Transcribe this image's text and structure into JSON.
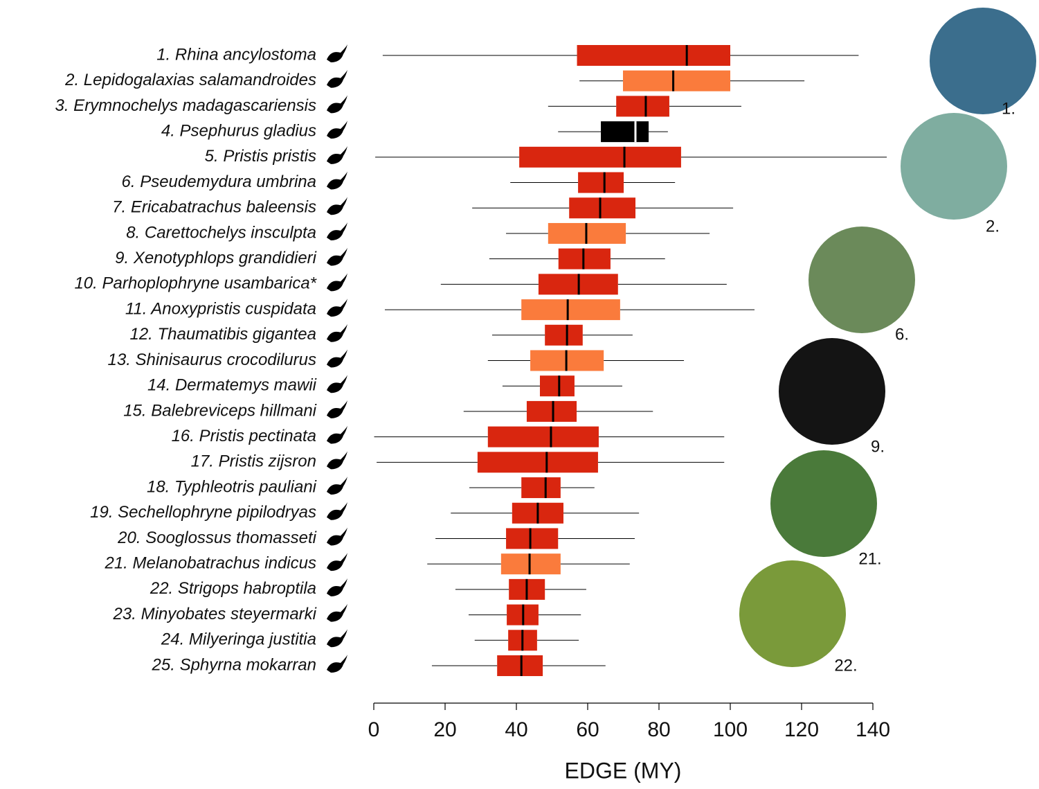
{
  "chart_data": {
    "type": "boxplot",
    "categories": [
      "1. Rhina ancylostoma",
      "2. Lepidogalaxias salamandroides",
      "3. Erymnochelys madagascariensis",
      "4. Psephurus gladius",
      "5. Pristis pristis",
      "6. Pseudemydura umbrina",
      "7. Ericabatrachus baleensis",
      "8. Carettochelys insculpta",
      "9. Xenotyphlops grandidieri",
      "10. Parhoplophryne usambarica*",
      "11. Anoxypristis cuspidata",
      "12. Thaumatibis gigantea",
      "13. Shinisaurus crocodilurus",
      "14. Dermatemys mawii",
      "15. Balebreviceps hillmani",
      "16. Pristis pectinata",
      "17. Pristis zijsron",
      "18. Typhleotris pauliani",
      "19. Sechellophryne pipilodryas",
      "20. Sooglossus thomasseti",
      "21. Melanobatrachus indicus",
      "22. Strigops habroptila",
      "23. Minyobates steyermarki",
      "24. Milyeringa justitia",
      "25. Sphyrna mokarran"
    ],
    "boxes": [
      {
        "low": 2.5,
        "q1": 57,
        "median": 87.8,
        "q3": 100,
        "high": 136,
        "color": "#d9260f",
        "median_color": "#000000"
      },
      {
        "low": 57.7,
        "q1": 69.9,
        "median": 84,
        "q3": 100,
        "high": 120.8,
        "color": "#fa7b3c",
        "median_color": "#000000"
      },
      {
        "low": 48.9,
        "q1": 68,
        "median": 76.3,
        "q3": 82.9,
        "high": 103.1,
        "color": "#d9260f",
        "median_color": "#000000"
      },
      {
        "low": 51.7,
        "q1": 63.7,
        "median": 73.4,
        "q3": 77.1,
        "high": 82.5,
        "color": "#000000",
        "median_color": "#ffffff"
      },
      {
        "low": 0.4,
        "q1": 40.8,
        "median": 70.3,
        "q3": 86.2,
        "high": 143.9,
        "color": "#d9260f",
        "median_color": "#000000"
      },
      {
        "low": 38.3,
        "q1": 57.3,
        "median": 64.7,
        "q3": 70.1,
        "high": 84.5,
        "color": "#d9260f",
        "median_color": "#000000"
      },
      {
        "low": 27.6,
        "q1": 54.8,
        "median": 63.5,
        "q3": 73.4,
        "high": 100.8,
        "color": "#d9260f",
        "median_color": "#000000"
      },
      {
        "low": 37.1,
        "q1": 48.9,
        "median": 59.6,
        "q3": 70.7,
        "high": 94.2,
        "color": "#fa7b3c",
        "median_color": "#000000"
      },
      {
        "low": 32.4,
        "q1": 51.8,
        "median": 58.8,
        "q3": 66.4,
        "high": 81.7,
        "color": "#d9260f",
        "median_color": "#000000"
      },
      {
        "low": 18.8,
        "q1": 46.2,
        "median": 57.5,
        "q3": 68.5,
        "high": 99,
        "color": "#d9260f",
        "median_color": "#000000"
      },
      {
        "low": 3.1,
        "q1": 41.4,
        "median": 54.4,
        "q3": 69.1,
        "high": 106.8,
        "color": "#fa7b3c",
        "median_color": "#000000"
      },
      {
        "low": 33.2,
        "q1": 48,
        "median": 54.2,
        "q3": 58.6,
        "high": 72.6,
        "color": "#d9260f",
        "median_color": "#000000"
      },
      {
        "low": 32,
        "q1": 43.9,
        "median": 54,
        "q3": 64.5,
        "high": 87,
        "color": "#fa7b3c",
        "median_color": "#000000"
      },
      {
        "low": 36.1,
        "q1": 46.6,
        "median": 52,
        "q3": 56.3,
        "high": 69.7,
        "color": "#d9260f",
        "median_color": "#000000"
      },
      {
        "low": 25.2,
        "q1": 42.9,
        "median": 50.3,
        "q3": 56.9,
        "high": 78.3,
        "color": "#d9260f",
        "median_color": "#000000"
      },
      {
        "low": 0.1,
        "q1": 32,
        "median": 49.7,
        "q3": 63.1,
        "high": 98.3,
        "color": "#d9260f",
        "median_color": "#000000"
      },
      {
        "low": 0.8,
        "q1": 29.1,
        "median": 48.5,
        "q3": 62.9,
        "high": 98.3,
        "color": "#d9260f",
        "median_color": "#000000"
      },
      {
        "low": 26.8,
        "q1": 41.4,
        "median": 48.2,
        "q3": 52.4,
        "high": 61.9,
        "color": "#d9260f",
        "median_color": "#000000"
      },
      {
        "low": 21.6,
        "q1": 38.8,
        "median": 46,
        "q3": 53.2,
        "high": 74.4,
        "color": "#d9260f",
        "median_color": "#000000"
      },
      {
        "low": 17.3,
        "q1": 37.1,
        "median": 43.9,
        "q3": 51.7,
        "high": 73.2,
        "color": "#d9260f",
        "median_color": "#000000"
      },
      {
        "low": 15,
        "q1": 35.7,
        "median": 43.7,
        "q3": 52.4,
        "high": 71.8,
        "color": "#fa7b3c",
        "median_color": "#000000"
      },
      {
        "low": 22.9,
        "q1": 37.9,
        "median": 42.9,
        "q3": 48,
        "high": 59.6,
        "color": "#d9260f",
        "median_color": "#000000"
      },
      {
        "low": 26.6,
        "q1": 37.3,
        "median": 41.9,
        "q3": 46.2,
        "high": 58.1,
        "color": "#d9260f",
        "median_color": "#000000"
      },
      {
        "low": 28.3,
        "q1": 37.7,
        "median": 41.7,
        "q3": 45.8,
        "high": 57.5,
        "color": "#d9260f",
        "median_color": "#000000"
      },
      {
        "low": 16.3,
        "q1": 34.6,
        "median": 41.4,
        "q3": 47.4,
        "high": 65,
        "color": "#d9260f",
        "median_color": "#000000"
      }
    ],
    "xlabel": "EDGE (MY)",
    "xlim": [
      0,
      140
    ],
    "xticks": [
      0,
      20,
      40,
      60,
      80,
      100,
      120,
      140
    ],
    "photos": [
      "1.",
      "2.",
      "6.",
      "9.",
      "21.",
      "22."
    ]
  }
}
